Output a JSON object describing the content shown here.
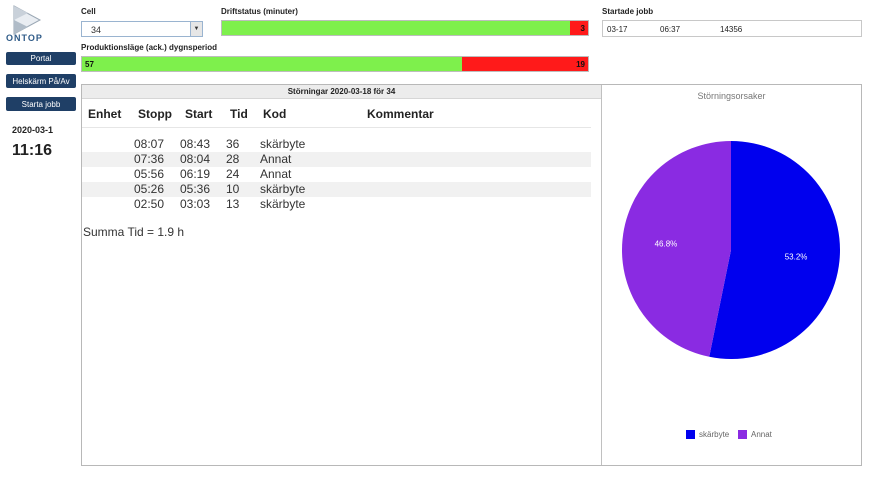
{
  "brand": {
    "name": "ONTOP"
  },
  "sidebar": {
    "buttons": [
      "Portal",
      "Helskärm På/Av",
      "Starta jobb"
    ],
    "date": "2020-03-1",
    "time": "11:16"
  },
  "cell": {
    "label": "Cell",
    "value": "34"
  },
  "driftstatus": {
    "label": "Driftstatus (minuter)",
    "green_value": "",
    "red_value": "3",
    "green_fraction": 0.95
  },
  "production": {
    "label": "Produktionsläge (ack.) dygnsperiod",
    "green_value": "57",
    "red_value": "19",
    "green_fraction": 0.75
  },
  "started_jobs": {
    "label": "Startade jobb",
    "date": "03-17",
    "time": "06:37",
    "job": "14356"
  },
  "disturbances": {
    "title": "Störningar 2020-03-18 för 34",
    "columns": [
      "Enhet",
      "Stopp",
      "Start",
      "Tid",
      "Kod",
      "Kommentar"
    ],
    "rows": [
      {
        "unit": "",
        "stop": "08:07",
        "start": "08:43",
        "time": "36",
        "code": "skärbyte",
        "comment": ""
      },
      {
        "unit": "",
        "stop": "07:36",
        "start": "08:04",
        "time": "28",
        "code": "Annat",
        "comment": ""
      },
      {
        "unit": "",
        "stop": "05:56",
        "start": "06:19",
        "time": "24",
        "code": "Annat",
        "comment": ""
      },
      {
        "unit": "",
        "stop": "05:26",
        "start": "05:36",
        "time": "10",
        "code": "skärbyte",
        "comment": ""
      },
      {
        "unit": "",
        "stop": "02:50",
        "start": "03:03",
        "time": "13",
        "code": "skärbyte",
        "comment": ""
      }
    ],
    "summary": "Summa Tid = 1.9 h"
  },
  "chart_data": {
    "type": "pie",
    "title": "Störningsorsaker",
    "slices": [
      {
        "label": "skärbyte",
        "value": 53.2,
        "text": "53.2%",
        "color": "#0000ee"
      },
      {
        "label": "Annat",
        "value": 46.8,
        "text": "46.8%",
        "color": "#8a2be2"
      }
    ],
    "legend": "bottom"
  }
}
